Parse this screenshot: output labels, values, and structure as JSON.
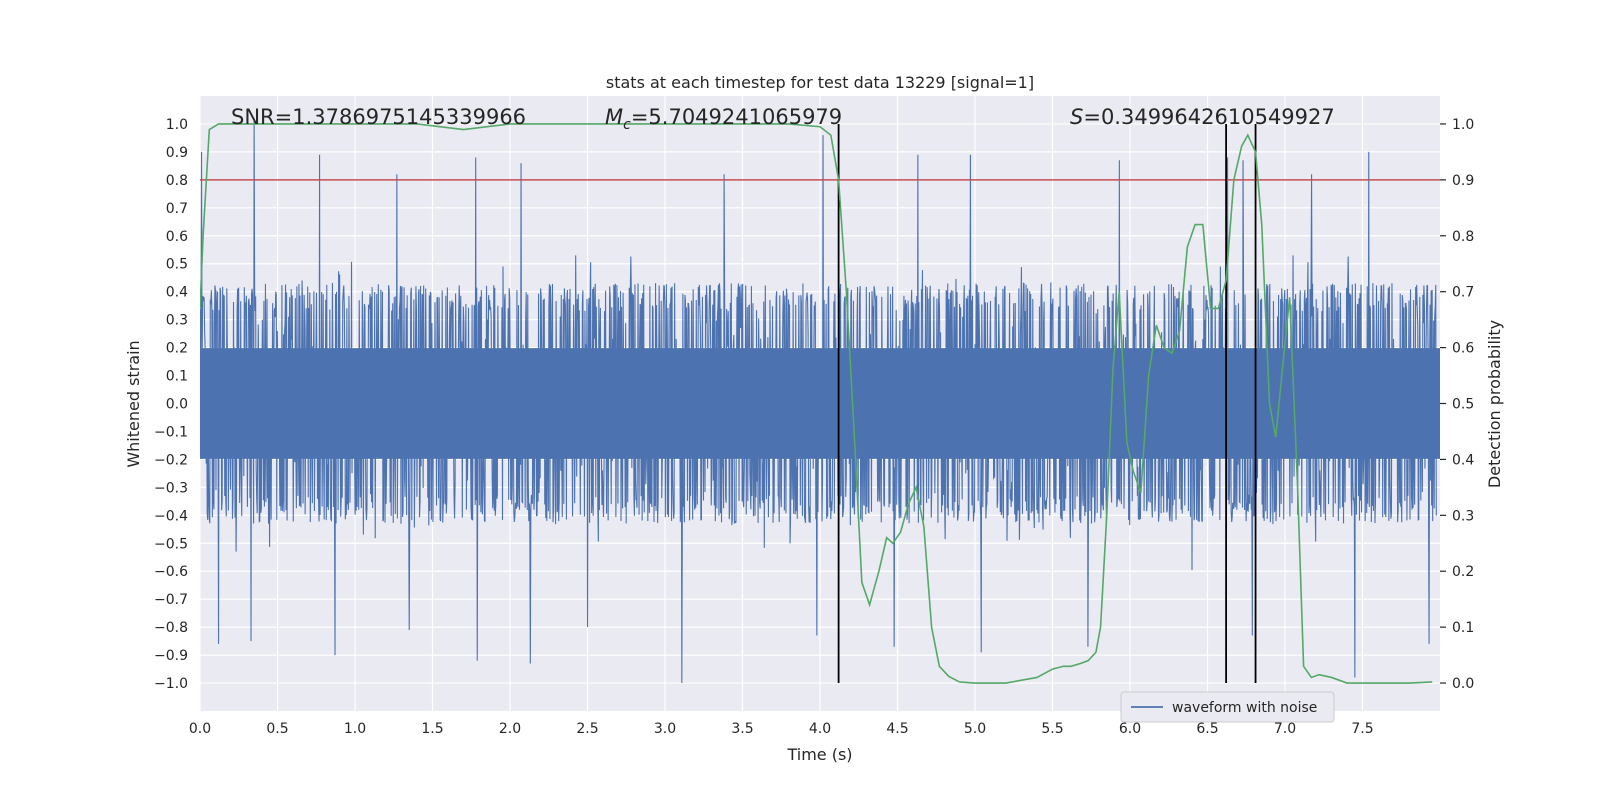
{
  "chart_data": {
    "type": "line",
    "title": "stats at each timestep for test data 13229 [signal=1]",
    "xlabel": "Time (s)",
    "ylabel": "Whitened strain",
    "y2label": "Detection probability",
    "xlim": [
      0,
      8
    ],
    "ylim": [
      -1.1,
      1.1
    ],
    "y2lim": [
      -0.05,
      1.05
    ],
    "xticks": [
      0.0,
      0.5,
      1.0,
      1.5,
      2.0,
      2.5,
      3.0,
      3.5,
      4.0,
      4.5,
      5.0,
      5.5,
      6.0,
      6.5,
      7.0,
      7.5
    ],
    "xtick_labels": [
      "0.0",
      "0.5",
      "1.0",
      "1.5",
      "2.0",
      "2.5",
      "3.0",
      "3.5",
      "4.0",
      "4.5",
      "5.0",
      "5.5",
      "6.0",
      "6.5",
      "7.0",
      "7.5"
    ],
    "yticks": [
      -1.0,
      -0.9,
      -0.8,
      -0.7,
      -0.6,
      -0.5,
      -0.4,
      -0.3,
      -0.2,
      -0.1,
      0.0,
      0.1,
      0.2,
      0.3,
      0.4,
      0.5,
      0.6,
      0.7,
      0.8,
      0.9,
      1.0
    ],
    "ytick_labels": [
      "−1.0",
      "−0.9",
      "−0.8",
      "−0.7",
      "−0.6",
      "−0.5",
      "−0.4",
      "−0.3",
      "−0.2",
      "−0.1",
      "0.0",
      "0.1",
      "0.2",
      "0.3",
      "0.4",
      "0.5",
      "0.6",
      "0.7",
      "0.8",
      "0.9",
      "1.0"
    ],
    "y2ticks": [
      0.0,
      0.1,
      0.2,
      0.3,
      0.4,
      0.5,
      0.6,
      0.7,
      0.8,
      0.9,
      1.0
    ],
    "y2tick_labels": [
      "0.0",
      "0.1",
      "0.2",
      "0.3",
      "0.4",
      "0.5",
      "0.6",
      "0.7",
      "0.8",
      "0.9",
      "1.0"
    ],
    "grid": true,
    "annotations": {
      "snr": "SNR=1.3786975145339966",
      "mc_symbol": "M",
      "mc_sub": "c",
      "mc_value": "=5.7049241065979",
      "s_symbol": "S",
      "s_value": "=0.3499642610549927"
    },
    "threshold": {
      "value": 0.9,
      "axis": "right",
      "color": "#c44e52"
    },
    "vlines": [
      4.12,
      6.62,
      6.81
    ],
    "legend": {
      "entries": [
        "waveform with noise"
      ],
      "location": "lower-right"
    },
    "series": [
      {
        "name": "waveform with noise",
        "axis": "left",
        "color": "#4c72b0",
        "description": "dense noisy whitened strain time series sampled over 0–8 s",
        "samples": 2400,
        "seed": 13229,
        "core_amplitude": 0.33,
        "spike_peaks": [
          [
            0.01,
            0.9
          ],
          [
            0.35,
            1.02
          ],
          [
            0.77,
            0.89
          ],
          [
            1.78,
            0.88
          ],
          [
            3.38,
            0.82
          ],
          [
            4.02,
            0.96
          ],
          [
            4.63,
            0.89
          ],
          [
            4.97,
            0.89
          ],
          [
            5.93,
            0.87
          ],
          [
            6.63,
            0.88
          ],
          [
            6.73,
            0.87
          ],
          [
            7.54,
            0.9
          ],
          [
            7.17,
            0.82
          ],
          [
            1.27,
            0.82
          ],
          [
            2.07,
            0.86
          ]
        ],
        "spike_troughs": [
          [
            0.12,
            -0.86
          ],
          [
            0.33,
            -0.85
          ],
          [
            0.87,
            -0.9
          ],
          [
            1.35,
            -0.81
          ],
          [
            1.79,
            -0.92
          ],
          [
            2.13,
            -0.93
          ],
          [
            3.11,
            -1.0
          ],
          [
            3.98,
            -0.83
          ],
          [
            4.48,
            -0.87
          ],
          [
            5.04,
            -0.89
          ],
          [
            5.73,
            -0.87
          ],
          [
            6.79,
            -0.83
          ],
          [
            7.45,
            -0.98
          ],
          [
            7.93,
            -0.86
          ],
          [
            2.5,
            -0.8
          ]
        ]
      },
      {
        "name": "detection probability",
        "axis": "right",
        "color": "#55a868",
        "x": [
          0.0,
          0.02,
          0.06,
          0.12,
          0.3,
          0.6,
          1.0,
          1.4,
          1.7,
          2.0,
          2.5,
          3.0,
          3.5,
          3.8,
          4.0,
          4.07,
          4.12,
          4.17,
          4.22,
          4.27,
          4.32,
          4.38,
          4.43,
          4.47,
          4.52,
          4.57,
          4.62,
          4.67,
          4.72,
          4.77,
          4.83,
          4.9,
          5.0,
          5.2,
          5.4,
          5.5,
          5.57,
          5.62,
          5.68,
          5.73,
          5.78,
          5.81,
          5.85,
          5.89,
          5.93,
          5.98,
          6.02,
          6.07,
          6.12,
          6.17,
          6.22,
          6.27,
          6.32,
          6.37,
          6.42,
          6.47,
          6.52,
          6.57,
          6.62,
          6.67,
          6.72,
          6.76,
          6.81,
          6.85,
          6.9,
          6.94,
          6.99,
          7.03,
          7.08,
          7.12,
          7.17,
          7.22,
          7.3,
          7.4,
          7.6,
          7.8,
          7.95
        ],
        "y": [
          0.67,
          0.8,
          0.99,
          1.0,
          1.0,
          1.0,
          1.0,
          1.0,
          0.99,
          1.0,
          1.0,
          1.0,
          1.0,
          1.0,
          0.995,
          0.98,
          0.9,
          0.7,
          0.45,
          0.18,
          0.14,
          0.2,
          0.26,
          0.25,
          0.27,
          0.32,
          0.35,
          0.28,
          0.1,
          0.03,
          0.012,
          0.002,
          0.0,
          0.0,
          0.01,
          0.025,
          0.03,
          0.03,
          0.035,
          0.04,
          0.055,
          0.1,
          0.3,
          0.56,
          0.7,
          0.43,
          0.38,
          0.34,
          0.55,
          0.64,
          0.6,
          0.59,
          0.63,
          0.78,
          0.82,
          0.82,
          0.67,
          0.67,
          0.72,
          0.9,
          0.96,
          0.98,
          0.95,
          0.82,
          0.5,
          0.44,
          0.58,
          0.69,
          0.36,
          0.03,
          0.01,
          0.015,
          0.01,
          0.0,
          0.0,
          0.0,
          0.002
        ]
      }
    ]
  }
}
